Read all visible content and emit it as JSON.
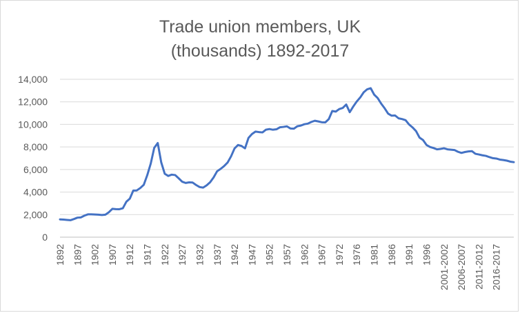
{
  "chart_data": {
    "type": "line",
    "title_lines": [
      "Trade union members, UK",
      "(thousands) 1892-2017"
    ],
    "xlabel": "",
    "ylabel": "",
    "ylim": [
      0,
      14000
    ],
    "yticks": [
      "0",
      "2,000",
      "4,000",
      "6,000",
      "8,000",
      "10,000",
      "12,000",
      "14,000"
    ],
    "ytick_values": [
      0,
      2000,
      4000,
      6000,
      8000,
      10000,
      12000,
      14000
    ],
    "grid": true,
    "legend": "none",
    "line_color": "#4472c4",
    "xtick_labels": [
      "1892",
      "1897",
      "1902",
      "1907",
      "1912",
      "1917",
      "1922",
      "1927",
      "1932",
      "1937",
      "1942",
      "1947",
      "1952",
      "1957",
      "1962",
      "1967",
      "1972",
      "1976",
      "1981",
      "1986",
      "1991",
      "1996",
      "2001-2002",
      "2006-2007",
      "2011-2012",
      "2016-2017"
    ],
    "series": [
      {
        "values": [
          1576,
          1559,
          1530,
          1504,
          1608,
          1731,
          1752,
          1911,
          2022,
          2025,
          2013,
          1994,
          1967,
          1997,
          2210,
          2513,
          2485,
          2477,
          2565,
          3139,
          3416,
          4135,
          4145,
          4359,
          4644,
          5499,
          6533,
          7926,
          8348,
          6633,
          5625,
          5429,
          5544,
          5506,
          5219,
          4919,
          4806,
          4858,
          4842,
          4624,
          4444,
          4392,
          4590,
          4867,
          5295,
          5842,
          6053,
          6298,
          6613,
          7165,
          7867,
          8174,
          8087,
          7875,
          8803,
          9145,
          9362,
          9319,
          9289,
          9530,
          9588,
          9527,
          9566,
          9741,
          9778,
          9829,
          9639,
          9623,
          9835,
          9897,
          10014,
          10067,
          10218,
          10325,
          10262,
          10190,
          10179,
          10468,
          11187,
          11135,
          11359,
          11456,
          11764,
          11082,
          11581,
          12026,
          12386,
          12846,
          13112,
          13212,
          12639,
          12338,
          11845,
          11432,
          10954,
          10772,
          10789,
          10539,
          10475,
          10376,
          9995,
          9730,
          9402,
          8826,
          8612,
          8176,
          8000,
          7906,
          7786,
          7826,
          7884,
          7790,
          7760,
          7728,
          7574,
          7470,
          7551,
          7602,
          7627,
          7393,
          7334,
          7261,
          7211,
          7100,
          7005,
          6971,
          6881,
          6841,
          6786,
          6695,
          6653
        ]
      }
    ]
  }
}
